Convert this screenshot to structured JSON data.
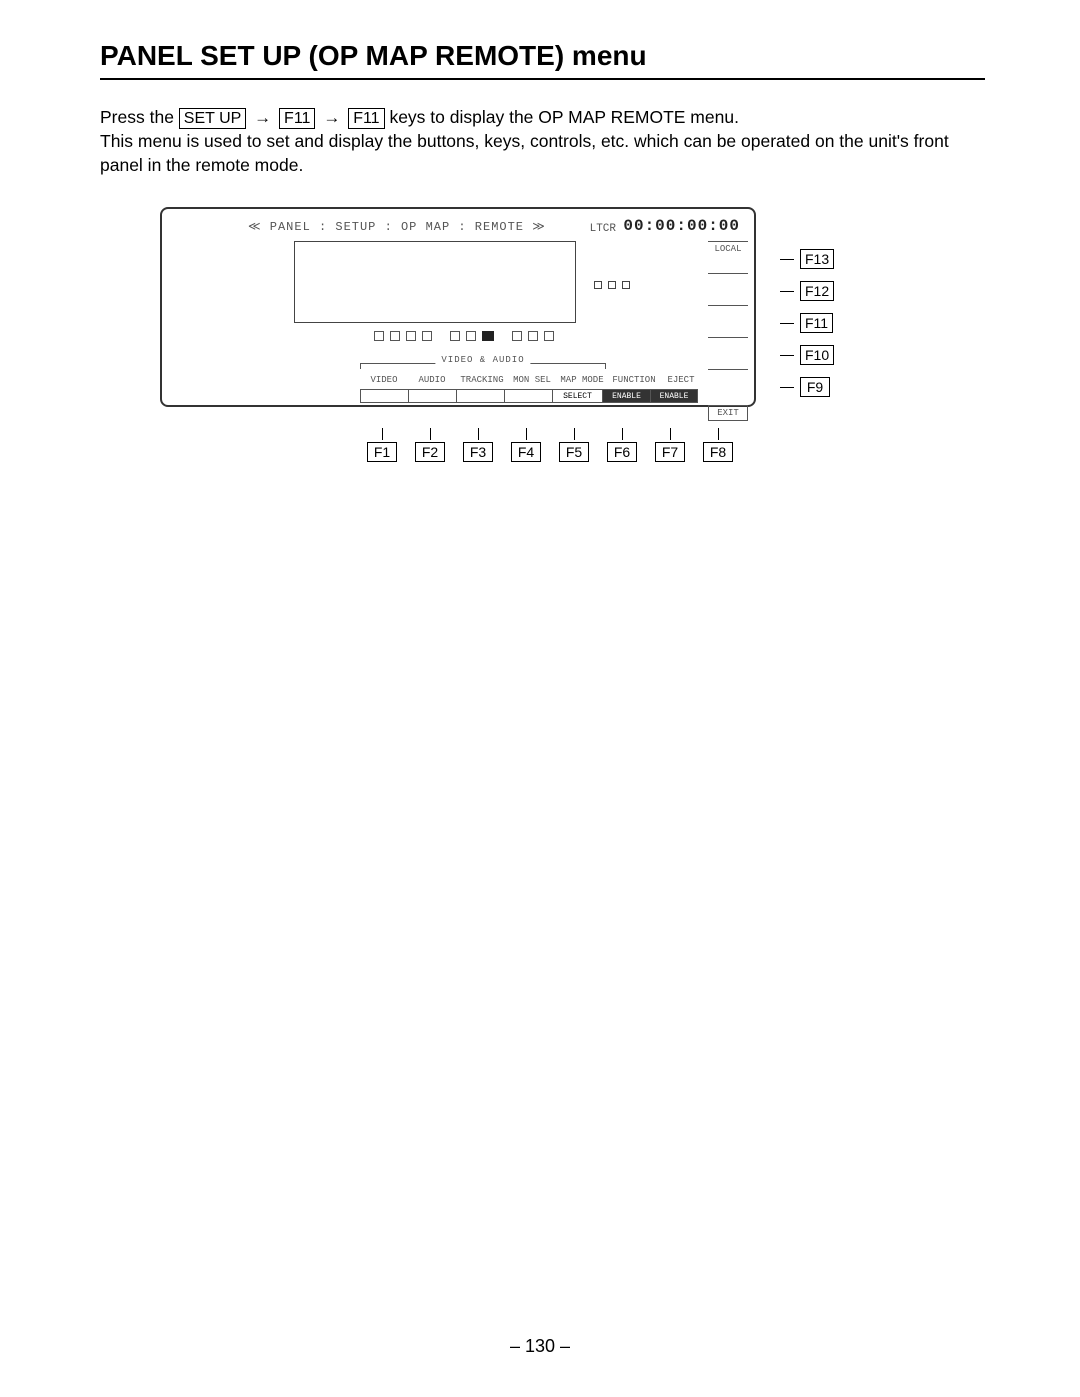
{
  "title": "PANEL SET UP (OP MAP REMOTE) menu",
  "desc": {
    "press": "Press the ",
    "key_setup": "SET UP",
    "key_f11a": "F11",
    "key_f11b": "F11",
    "after_keys": " keys to display the OP MAP REMOTE menu.",
    "line2": "This menu is used to set and display the buttons, keys, controls, etc. which can be operated on the unit's front panel in the remote mode."
  },
  "screen": {
    "breadcrumb": "≪  PANEL : SETUP : OP MAP : REMOTE  ≫",
    "ltcr_label": "LTCR",
    "ltcr_value": "00:00:00:00",
    "va_legend": "VIDEO & AUDIO",
    "side": [
      "LOCAL",
      "",
      "",
      "",
      ""
    ],
    "side_exit": "EXIT",
    "bottom_labels": [
      "VIDEO",
      "AUDIO",
      "TRACKING",
      "MON SEL",
      "MAP MODE",
      "FUNCTION",
      "EJECT"
    ],
    "bottom_btns": [
      {
        "label": "",
        "inv": false
      },
      {
        "label": "",
        "inv": false
      },
      {
        "label": "",
        "inv": false
      },
      {
        "label": "",
        "inv": false
      },
      {
        "label": "SELECT",
        "inv": false
      },
      {
        "label": "ENABLE",
        "inv": true
      },
      {
        "label": "ENABLE",
        "inv": true
      }
    ]
  },
  "fkeys_bottom": [
    "F1",
    "F2",
    "F3",
    "F4",
    "F5",
    "F6",
    "F7",
    "F8"
  ],
  "fkeys_right": [
    "F13",
    "F12",
    "F11",
    "F10",
    "F9"
  ],
  "page_number": "– 130 –"
}
